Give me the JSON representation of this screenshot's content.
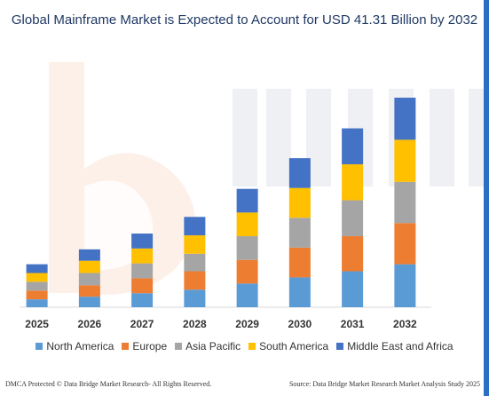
{
  "title": "Global Mainframe Market is Expected to Account for USD 41.31 Billion by 2032",
  "footer": {
    "left": "DMCA Protected © Data Bridge Market Research- All Rights Reserved.",
    "right": "Source: Data Bridge Market Research Market Analysis Study 2025"
  },
  "colors": {
    "north_america": "#5b9bd5",
    "europe": "#ed7d31",
    "asia_pacific": "#a5a5a5",
    "south_america": "#ffc000",
    "mea": "#4472c4",
    "title": "#1f3864"
  },
  "chart_data": {
    "type": "bar",
    "stacked": true,
    "categories": [
      "2025",
      "2026",
      "2027",
      "2028",
      "2029",
      "2030",
      "2031",
      "2032"
    ],
    "series": [
      {
        "name": "North America",
        "color": "#5b9bd5",
        "values": [
          9,
          12,
          16,
          20,
          27,
          34,
          41,
          49
        ]
      },
      {
        "name": "Europe",
        "color": "#ed7d31",
        "values": [
          10,
          13,
          17,
          21,
          27,
          34,
          40,
          47
        ]
      },
      {
        "name": "Asia Pacific",
        "color": "#a5a5a5",
        "values": [
          10,
          14,
          17,
          20,
          27,
          34,
          41,
          47
        ]
      },
      {
        "name": "South America",
        "color": "#ffc000",
        "values": [
          10,
          14,
          17,
          21,
          27,
          34,
          41,
          48
        ]
      },
      {
        "name": "Middle East and Africa",
        "color": "#4472c4",
        "values": [
          10,
          13,
          17,
          21,
          27,
          34,
          41,
          48
        ]
      }
    ],
    "yaxis_visible": false,
    "gridlines": false,
    "legend_position": "bottom"
  }
}
